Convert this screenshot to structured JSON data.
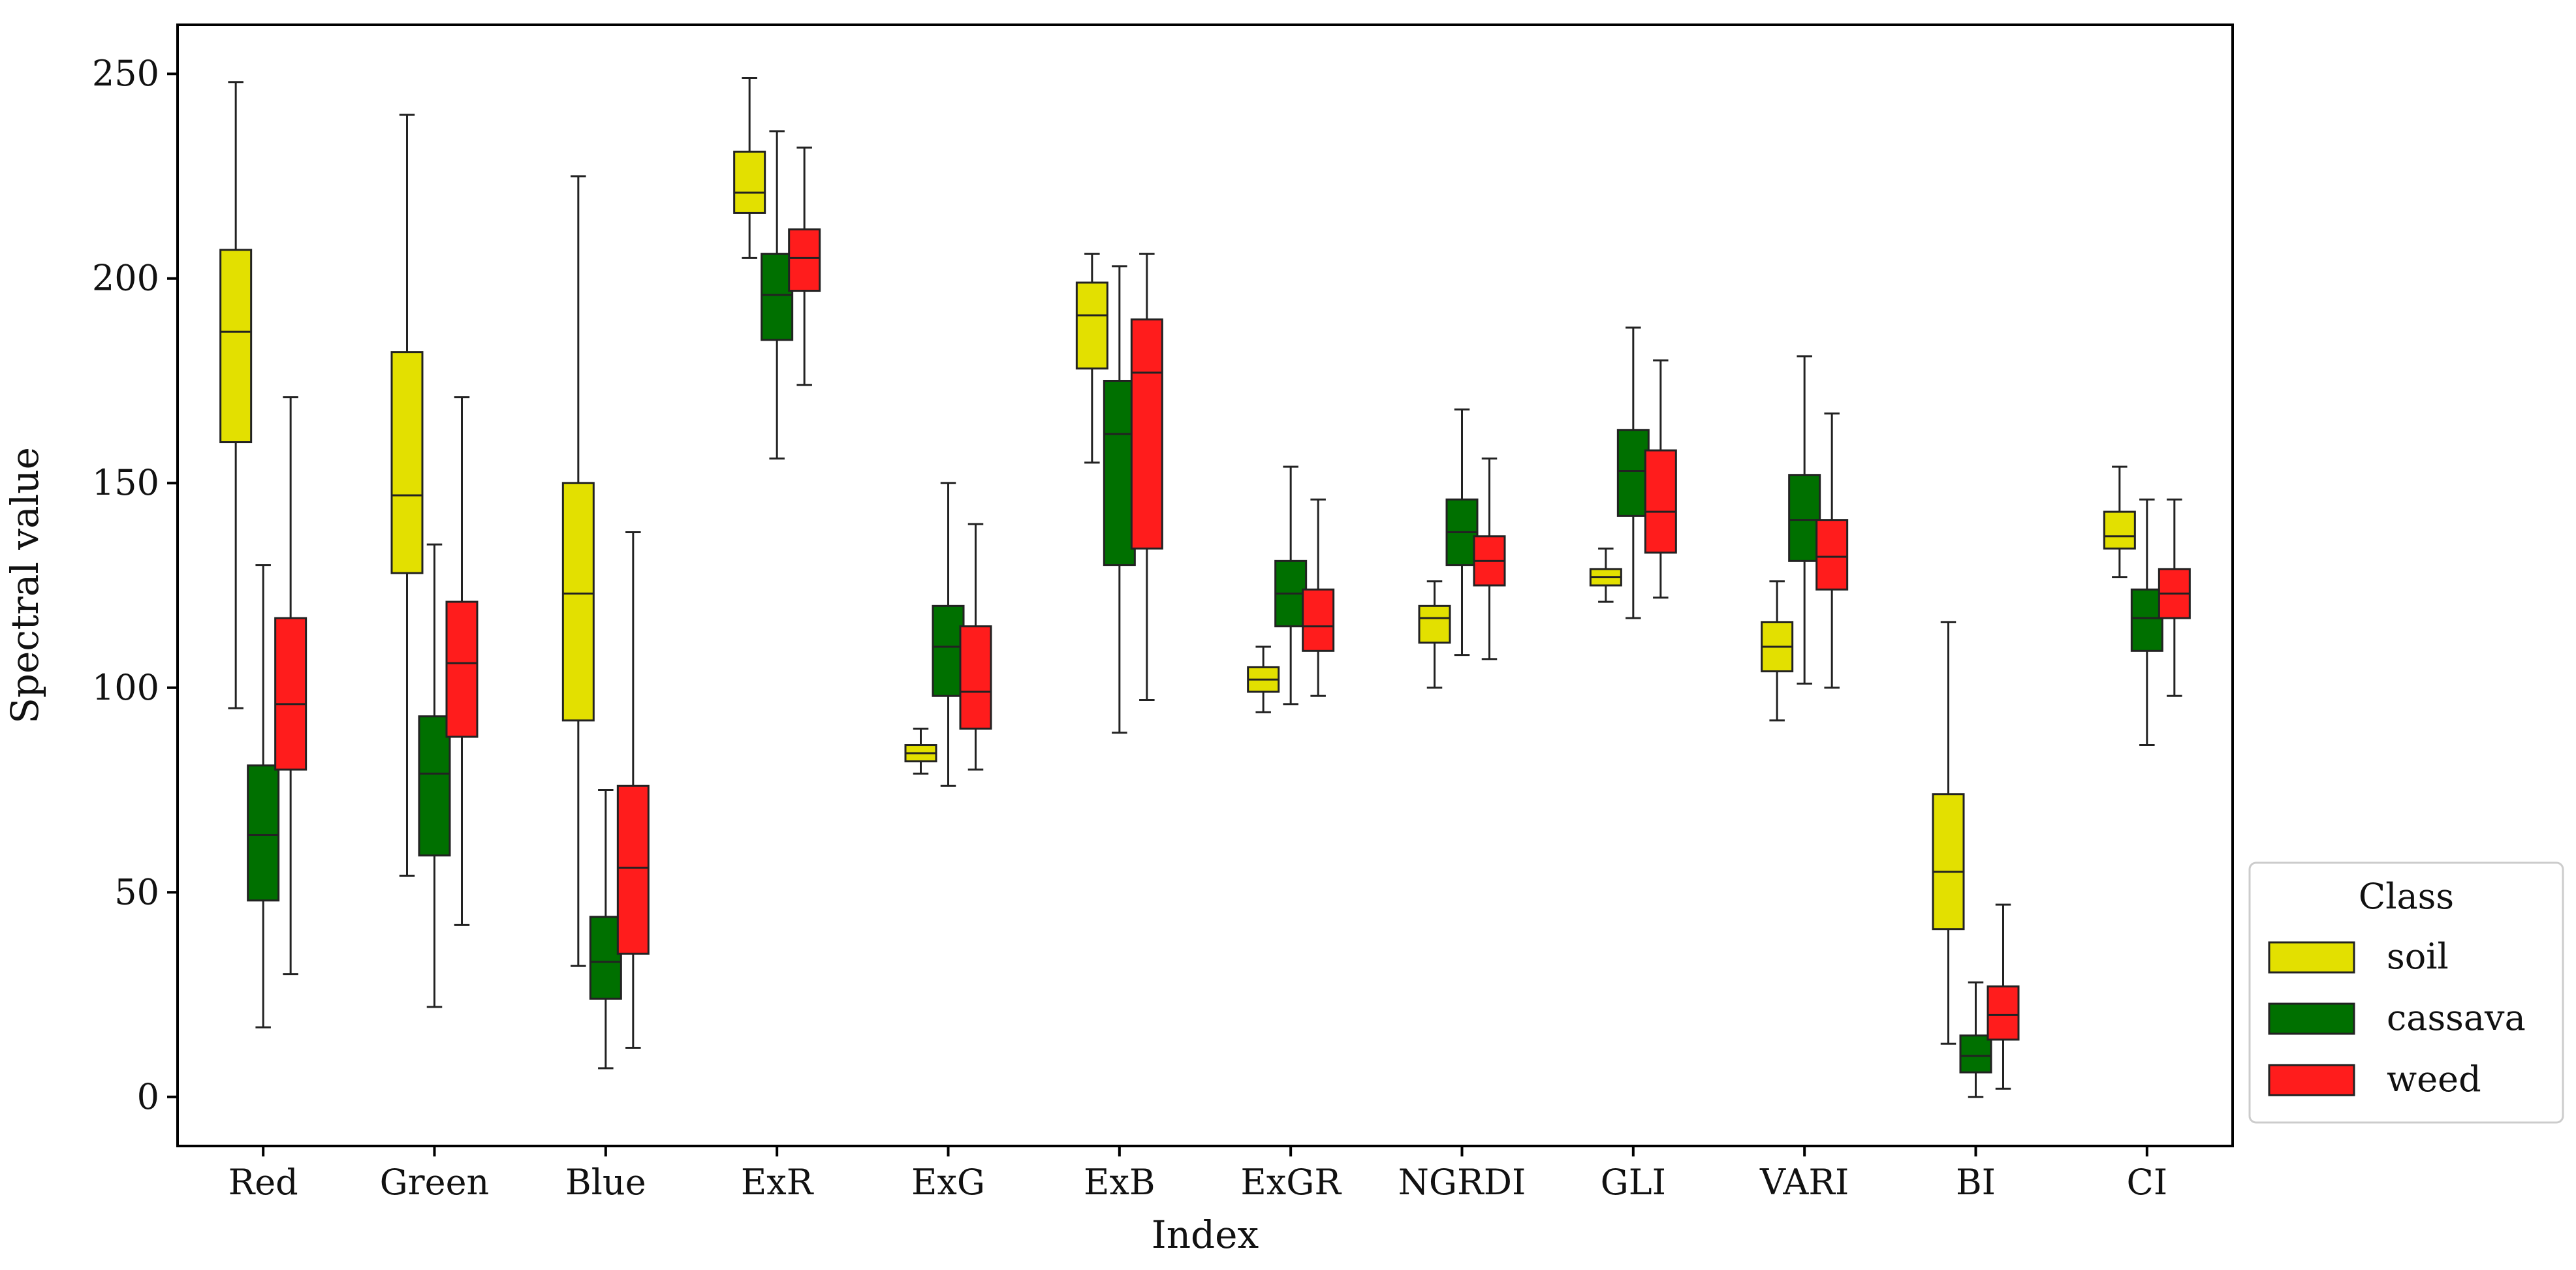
{
  "chart_data": {
    "type": "boxplot",
    "title": "",
    "xlabel": "Index",
    "ylabel": "Spectral value",
    "ylim": [
      -12,
      262
    ],
    "yticks": [
      0,
      50,
      100,
      150,
      200,
      250
    ],
    "grid": false,
    "legend": {
      "title": "Class",
      "position": "outside-bottom-right"
    },
    "categories": [
      "Red",
      "Green",
      "Blue",
      "ExR",
      "ExG",
      "ExB",
      "ExGR",
      "NGRDI",
      "GLI",
      "VARI",
      "BI",
      "CI"
    ],
    "series": [
      {
        "name": "soil",
        "color": "#e3e000",
        "boxes": [
          {
            "whislo": 95,
            "q1": 160,
            "med": 187,
            "q3": 207,
            "whishi": 248
          },
          {
            "whislo": 54,
            "q1": 128,
            "med": 147,
            "q3": 182,
            "whishi": 240
          },
          {
            "whislo": 32,
            "q1": 92,
            "med": 123,
            "q3": 150,
            "whishi": 225
          },
          {
            "whislo": 205,
            "q1": 216,
            "med": 221,
            "q3": 231,
            "whishi": 249
          },
          {
            "whislo": 79,
            "q1": 82,
            "med": 84,
            "q3": 86,
            "whishi": 90
          },
          {
            "whislo": 155,
            "q1": 178,
            "med": 191,
            "q3": 199,
            "whishi": 206
          },
          {
            "whislo": 94,
            "q1": 99,
            "med": 102,
            "q3": 105,
            "whishi": 110
          },
          {
            "whislo": 100,
            "q1": 111,
            "med": 117,
            "q3": 120,
            "whishi": 126
          },
          {
            "whislo": 121,
            "q1": 125,
            "med": 127,
            "q3": 129,
            "whishi": 134
          },
          {
            "whislo": 92,
            "q1": 104,
            "med": 110,
            "q3": 116,
            "whishi": 126
          },
          {
            "whislo": 13,
            "q1": 41,
            "med": 55,
            "q3": 74,
            "whishi": 116
          },
          {
            "whislo": 127,
            "q1": 134,
            "med": 137,
            "q3": 143,
            "whishi": 154
          }
        ]
      },
      {
        "name": "cassava",
        "color": "#007000",
        "boxes": [
          {
            "whislo": 17,
            "q1": 48,
            "med": 64,
            "q3": 81,
            "whishi": 130
          },
          {
            "whislo": 22,
            "q1": 59,
            "med": 79,
            "q3": 93,
            "whishi": 135
          },
          {
            "whislo": 7,
            "q1": 24,
            "med": 33,
            "q3": 44,
            "whishi": 75
          },
          {
            "whislo": 156,
            "q1": 185,
            "med": 196,
            "q3": 206,
            "whishi": 236
          },
          {
            "whislo": 76,
            "q1": 98,
            "med": 110,
            "q3": 120,
            "whishi": 150
          },
          {
            "whislo": 89,
            "q1": 130,
            "med": 162,
            "q3": 175,
            "whishi": 203
          },
          {
            "whislo": 96,
            "q1": 115,
            "med": 123,
            "q3": 131,
            "whishi": 154
          },
          {
            "whislo": 108,
            "q1": 130,
            "med": 138,
            "q3": 146,
            "whishi": 168
          },
          {
            "whislo": 117,
            "q1": 142,
            "med": 153,
            "q3": 163,
            "whishi": 188
          },
          {
            "whislo": 101,
            "q1": 131,
            "med": 141,
            "q3": 152,
            "whishi": 181
          },
          {
            "whislo": 0,
            "q1": 6,
            "med": 10,
            "q3": 15,
            "whishi": 28
          },
          {
            "whislo": 86,
            "q1": 109,
            "med": 117,
            "q3": 124,
            "whishi": 146
          }
        ]
      },
      {
        "name": "weed",
        "color": "#ff1c1c",
        "boxes": [
          {
            "whislo": 30,
            "q1": 80,
            "med": 96,
            "q3": 117,
            "whishi": 171
          },
          {
            "whislo": 42,
            "q1": 88,
            "med": 106,
            "q3": 121,
            "whishi": 171
          },
          {
            "whislo": 12,
            "q1": 35,
            "med": 56,
            "q3": 76,
            "whishi": 138
          },
          {
            "whislo": 174,
            "q1": 197,
            "med": 205,
            "q3": 212,
            "whishi": 232
          },
          {
            "whislo": 80,
            "q1": 90,
            "med": 99,
            "q3": 115,
            "whishi": 140
          },
          {
            "whislo": 97,
            "q1": 134,
            "med": 177,
            "q3": 190,
            "whishi": 206
          },
          {
            "whislo": 98,
            "q1": 109,
            "med": 115,
            "q3": 124,
            "whishi": 146
          },
          {
            "whislo": 107,
            "q1": 125,
            "med": 131,
            "q3": 137,
            "whishi": 156
          },
          {
            "whislo": 122,
            "q1": 133,
            "med": 143,
            "q3": 158,
            "whishi": 180
          },
          {
            "whislo": 100,
            "q1": 124,
            "med": 132,
            "q3": 141,
            "whishi": 167
          },
          {
            "whislo": 2,
            "q1": 14,
            "med": 20,
            "q3": 27,
            "whishi": 47
          },
          {
            "whislo": 98,
            "q1": 117,
            "med": 123,
            "q3": 129,
            "whishi": 146
          }
        ]
      }
    ]
  }
}
